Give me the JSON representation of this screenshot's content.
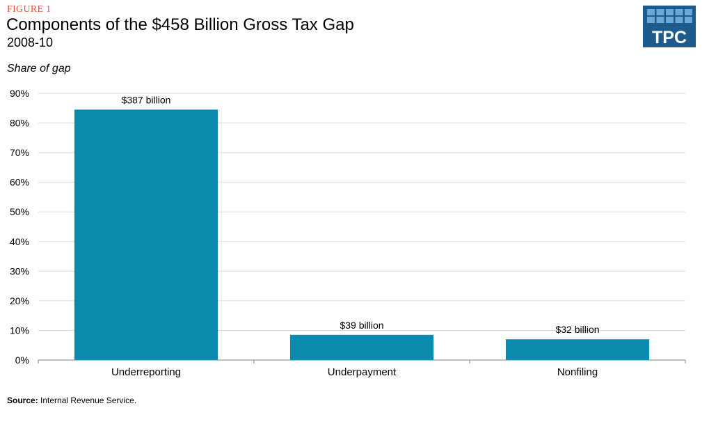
{
  "header": {
    "figure_label": "FIGURE 1",
    "title": "Components of the $458 Billion Gross Tax Gap",
    "subtitle": "2008-10"
  },
  "logo": {
    "text": "TPC",
    "color": "#1e5a8a",
    "tile_color": "#6aa8d8"
  },
  "source": {
    "label": "Source:",
    "text": "Internal Revenue Service."
  },
  "chart_data": {
    "type": "bar",
    "title": "Components of the $458 Billion Gross Tax Gap",
    "subtitle": "2008-10",
    "ylabel": "Share of gap",
    "xlabel": "",
    "categories": [
      "Underreporting",
      "Underpayment",
      "Nonfiling"
    ],
    "values": [
      84.5,
      8.5,
      7.0
    ],
    "data_labels": [
      "$387 billion",
      "$39 billion",
      "$32 billion"
    ],
    "ylim": [
      0,
      90
    ],
    "yticks": [
      0,
      10,
      20,
      30,
      40,
      50,
      60,
      70,
      80,
      90
    ],
    "ytick_labels": [
      "0%",
      "10%",
      "20%",
      "30%",
      "40%",
      "50%",
      "60%",
      "70%",
      "80%",
      "90%"
    ],
    "grid": true,
    "bar_color": "#0a8aad",
    "grid_color": "#d9d9d9"
  }
}
